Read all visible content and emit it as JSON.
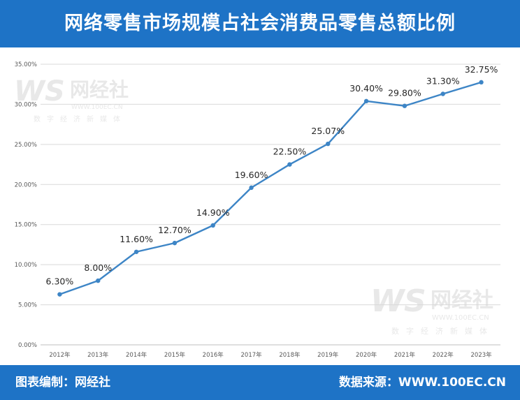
{
  "header": {
    "title": "网络零售市场规模占社会消费品零售总额比例"
  },
  "footer": {
    "editor": "图表编制：网经社",
    "source": "数据来源：WWW.100EC.CN"
  },
  "watermark": {
    "brand": "网经社",
    "url": "WWW.100EC.CN",
    "tagline": "数字经济新媒体"
  },
  "colors": {
    "header_bg": "#1e73c6",
    "line": "#3d85c6",
    "grid": "#d9d9d9"
  },
  "chart_data": {
    "type": "line",
    "title": "网络零售市场规模占社会消费品零售总额比例",
    "categories": [
      "2012年",
      "2013年",
      "2014年",
      "2015年",
      "2016年",
      "2017年",
      "2018年",
      "2019年",
      "2020年",
      "2021年",
      "2022年",
      "2023年"
    ],
    "values": [
      6.3,
      8.0,
      11.6,
      12.7,
      14.9,
      19.6,
      22.5,
      25.07,
      30.4,
      29.8,
      31.3,
      32.75
    ],
    "data_labels": [
      "6.30%",
      "8.00%",
      "11.60%",
      "12.70%",
      "14.90%",
      "19.60%",
      "22.50%",
      "25.07%",
      "30.40%",
      "29.80%",
      "31.30%",
      "32.75%"
    ],
    "y_ticks": [
      "0.00%",
      "5.00%",
      "10.00%",
      "15.00%",
      "20.00%",
      "25.00%",
      "30.00%",
      "35.00%"
    ],
    "ylim": [
      0,
      35
    ],
    "ytick_step": 5,
    "grid": true
  }
}
